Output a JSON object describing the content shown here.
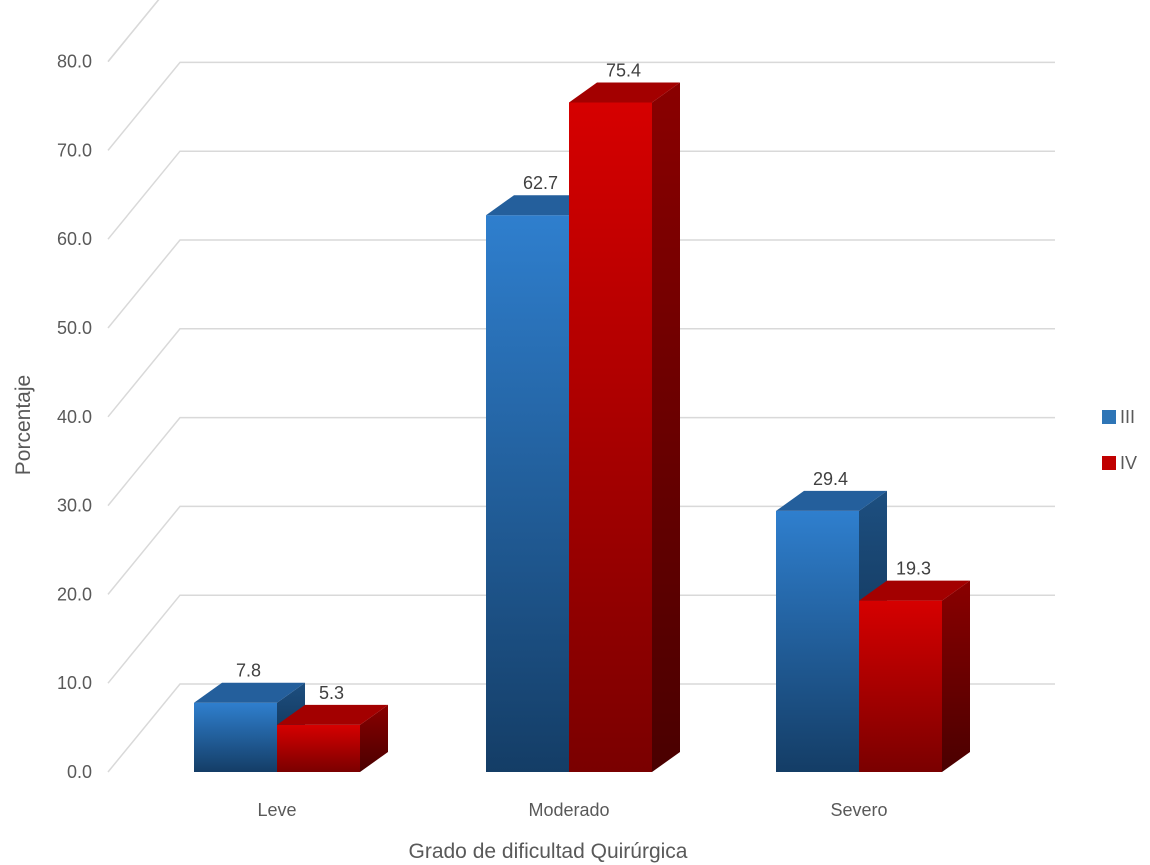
{
  "chart_data": {
    "type": "bar",
    "title": "",
    "xlabel": "Grado de dificultad Quirúrgica",
    "ylabel": "Porcentaje",
    "categories": [
      "Leve",
      "Moderado",
      "Severo"
    ],
    "series": [
      {
        "name": "III",
        "values": [
          7.8,
          62.7,
          29.4
        ],
        "color": "#2e75b6",
        "labels": [
          "7.8",
          "62.7",
          "29.4"
        ]
      },
      {
        "name": "IV",
        "values": [
          5.3,
          75.4,
          19.3
        ],
        "color": "#c00000",
        "labels": [
          "5.3",
          "75.4",
          "19.3"
        ]
      }
    ],
    "ylim": [
      0,
      80
    ],
    "yticks": [
      "0.0",
      "10.0",
      "20.0",
      "30.0",
      "40.0",
      "50.0",
      "60.0",
      "70.0",
      "80.0"
    ],
    "grid": true,
    "legend_position": "right",
    "style": "3d-clustered-column"
  }
}
